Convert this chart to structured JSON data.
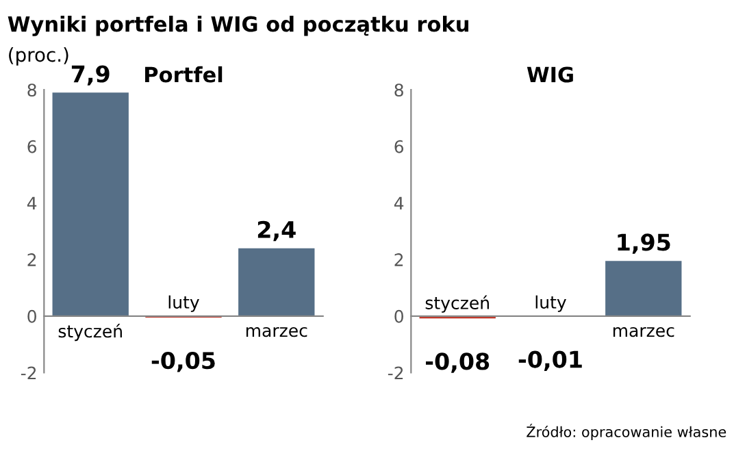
{
  "chart_data": [
    {
      "type": "bar",
      "title": "Portfel",
      "categories": [
        "styczeń",
        "luty",
        "marzec"
      ],
      "values": [
        7.9,
        -0.05,
        2.4
      ],
      "colors": [
        "#566f87",
        "#c0392b",
        "#566f87"
      ],
      "value_labels": [
        "7,9",
        "-0,05",
        "2,4"
      ],
      "ylim": [
        -2,
        8
      ],
      "yticks": [
        -2,
        0,
        2,
        4,
        6,
        8
      ],
      "grid": false,
      "annotations": [
        "Wyniki portfela i WIG od początku roku",
        "(proc.)",
        "Źródło: opracowanie własne"
      ]
    },
    {
      "type": "bar",
      "title": "WIG",
      "categories": [
        "styczeń",
        "luty",
        "marzec"
      ],
      "values": [
        -0.08,
        -0.01,
        1.95
      ],
      "colors": [
        "#c0392b",
        "#c0392b",
        "#566f87"
      ],
      "value_labels": [
        "-0,08",
        "-0,01",
        "1,95"
      ],
      "ylim": [
        -2,
        8
      ],
      "yticks": [
        -2,
        0,
        2,
        4,
        6,
        8
      ],
      "grid": false
    }
  ]
}
